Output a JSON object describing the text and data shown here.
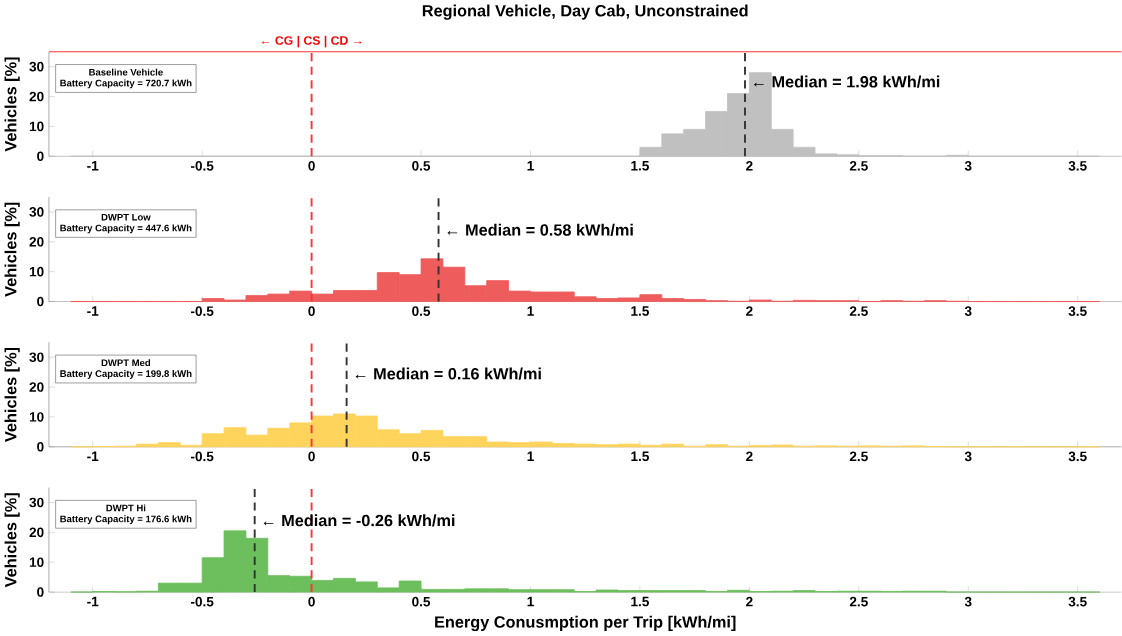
{
  "chart_data": [
    {
      "type": "histogram",
      "title": "Regional Vehicle, Day Cab, Unconstrained",
      "ylabel": "Vehicles [%]",
      "color": "#c0c0c0",
      "bins": [
        -1.1,
        -1.0,
        -0.9,
        -0.8,
        -0.7,
        -0.6,
        -0.5,
        -0.4,
        -0.3,
        -0.2,
        -0.1,
        0,
        0.1,
        0.2,
        0.3,
        0.4,
        0.5,
        0.6,
        0.7,
        0.8,
        0.9,
        1.0,
        1.1,
        1.2,
        1.3,
        1.4,
        1.5,
        1.6,
        1.7,
        1.8,
        1.9,
        2.0,
        2.1,
        2.2,
        2.3,
        2.4,
        2.5,
        2.6,
        2.7,
        2.8,
        2.9,
        3.0,
        3.1,
        3.2,
        3.3,
        3.4,
        3.5,
        3.6
      ],
      "values": [
        0,
        0,
        0,
        0,
        0,
        0,
        0,
        0,
        0,
        0,
        0,
        0,
        0,
        0,
        0,
        0,
        0,
        0,
        0,
        0,
        0,
        0,
        0,
        0,
        0,
        0,
        3,
        7.5,
        9,
        15,
        21,
        28,
        9,
        3,
        0.8,
        0.5,
        0.2,
        0.2,
        0,
        0,
        0.3,
        0,
        0,
        0,
        0,
        0,
        0
      ],
      "xlim": [
        -1.2,
        3.7
      ],
      "ylim": [
        0,
        35
      ],
      "xticks": [
        -1,
        -0.5,
        0,
        0.5,
        1,
        1.5,
        2,
        2.5,
        3,
        3.5
      ],
      "yticks": [
        0,
        10,
        20,
        30
      ],
      "ref_lines": [
        {
          "axis": "x",
          "value": 0,
          "color": "#ff3333",
          "line_style": "dashed"
        },
        {
          "axis": "x",
          "value": 1.98,
          "color": "#333333",
          "line_style": "dashed"
        },
        {
          "axis": "y",
          "value": 35,
          "color": "#ff3333",
          "line_style": "solid"
        }
      ],
      "annotations": [
        "Baseline Vehicle",
        "Battery Capacity = 720.7 kWh",
        {
          "text": "← Median = 1.98 kWh/mi",
          "x": 1.98,
          "y": 25
        },
        "← CG | CS | CD →"
      ],
      "grid": false
    },
    {
      "type": "histogram",
      "ylabel": "Vehicles [%]",
      "color": "#ee5c5c",
      "bins": [
        -1.1,
        -1.0,
        -0.9,
        -0.8,
        -0.7,
        -0.6,
        -0.5,
        -0.4,
        -0.3,
        -0.2,
        -0.1,
        0,
        0.1,
        0.2,
        0.3,
        0.4,
        0.5,
        0.6,
        0.7,
        0.8,
        0.9,
        1.0,
        1.1,
        1.2,
        1.3,
        1.4,
        1.5,
        1.6,
        1.7,
        1.8,
        1.9,
        2.0,
        2.1,
        2.2,
        2.3,
        2.4,
        2.5,
        2.6,
        2.7,
        2.8,
        2.9,
        3.0,
        3.1,
        3.2,
        3.3,
        3.4,
        3.5,
        3.6
      ],
      "values": [
        0,
        0,
        0,
        0,
        0,
        0,
        1,
        0.5,
        2,
        2.5,
        3.5,
        2.5,
        3.7,
        3.7,
        9.7,
        9,
        14.3,
        11.5,
        5.3,
        7,
        3.5,
        3.2,
        3.2,
        1.6,
        1,
        1.2,
        2.3,
        1,
        0.7,
        0.3,
        0.1,
        0.5,
        0.1,
        0.4,
        0.3,
        0.3,
        0,
        0.3,
        0.1,
        0.3,
        0.1,
        0,
        0,
        0,
        0,
        0,
        0
      ],
      "xlim": [
        -1.2,
        3.7
      ],
      "ylim": [
        0,
        35
      ],
      "xticks": [
        -1,
        -0.5,
        0,
        0.5,
        1,
        1.5,
        2,
        2.5,
        3,
        3.5
      ],
      "yticks": [
        0,
        10,
        20,
        30
      ],
      "ref_lines": [
        {
          "axis": "x",
          "value": 0,
          "color": "#ff3333",
          "line_style": "dashed"
        },
        {
          "axis": "x",
          "value": 0.58,
          "color": "#333333",
          "line_style": "dashed"
        }
      ],
      "annotations": [
        "DWPT Low",
        "Battery Capacity = 447.6 kWh",
        {
          "text": "← Median = 0.58 kWh/mi",
          "x": 0.58,
          "y": 24
        }
      ],
      "grid": false
    },
    {
      "type": "histogram",
      "ylabel": "Vehicles [%]",
      "color": "#ffd45c",
      "bins": [
        -1.1,
        -1.0,
        -0.9,
        -0.8,
        -0.7,
        -0.6,
        -0.5,
        -0.4,
        -0.3,
        -0.2,
        -0.1,
        0,
        0.1,
        0.2,
        0.3,
        0.4,
        0.5,
        0.6,
        0.7,
        0.8,
        0.9,
        1.0,
        1.1,
        1.2,
        1.3,
        1.4,
        1.5,
        1.6,
        1.7,
        1.8,
        1.9,
        2.0,
        2.1,
        2.2,
        2.3,
        2.4,
        2.5,
        2.6,
        2.7,
        2.8,
        2.9,
        3.0,
        3.1,
        3.2,
        3.3,
        3.4,
        3.5,
        3.6
      ],
      "values": [
        0,
        0.1,
        0.2,
        0.9,
        1.4,
        0.5,
        4.4,
        6.4,
        3.9,
        6.2,
        8,
        10.3,
        11,
        10.3,
        5.7,
        4.4,
        5.5,
        3.4,
        3.4,
        1.6,
        1.4,
        1.6,
        1.1,
        0.9,
        0.7,
        0.9,
        0.5,
        0.9,
        0.2,
        0.7,
        0.2,
        0.4,
        0.6,
        0.2,
        0.3,
        0.2,
        0.3,
        0.2,
        0.3,
        0.1,
        0,
        0,
        0,
        0,
        0,
        0,
        0
      ],
      "xlim": [
        -1.2,
        3.7
      ],
      "ylim": [
        0,
        35
      ],
      "xticks": [
        -1,
        -0.5,
        0,
        0.5,
        1,
        1.5,
        2,
        2.5,
        3,
        3.5
      ],
      "yticks": [
        0,
        10,
        20,
        30
      ],
      "ref_lines": [
        {
          "axis": "x",
          "value": 0,
          "color": "#ff3333",
          "line_style": "dashed"
        },
        {
          "axis": "x",
          "value": 0.16,
          "color": "#333333",
          "line_style": "dashed"
        }
      ],
      "annotations": [
        "DWPT Med",
        "Battery Capacity = 199.8 kWh",
        {
          "text": "← Median = 0.16 kWh/mi",
          "x": 0.16,
          "y": 24.5
        }
      ],
      "grid": false
    },
    {
      "type": "histogram",
      "ylabel": "Vehicles [%]",
      "xlabel": "Energy Conusmption per Trip [kWh/mi]",
      "color": "#6cbf5c",
      "bins": [
        -1.1,
        -1.0,
        -0.9,
        -0.8,
        -0.7,
        -0.6,
        -0.5,
        -0.4,
        -0.3,
        -0.2,
        -0.1,
        0,
        0.1,
        0.2,
        0.3,
        0.4,
        0.5,
        0.6,
        0.7,
        0.8,
        0.9,
        1.0,
        1.1,
        1.2,
        1.3,
        1.4,
        1.5,
        1.6,
        1.7,
        1.8,
        1.9,
        2.0,
        2.1,
        2.2,
        2.3,
        2.4,
        2.5,
        2.6,
        2.7,
        2.8,
        2.9,
        3.0,
        3.1,
        3.2,
        3.3,
        3.4,
        3.5,
        3.6
      ],
      "values": [
        0,
        0.2,
        0.1,
        0.3,
        3,
        3,
        11.5,
        20.5,
        18,
        5.5,
        5.3,
        3.9,
        4.6,
        3.4,
        1.4,
        3.7,
        0.9,
        0.9,
        1.1,
        1.1,
        0.8,
        0.8,
        0.8,
        0.2,
        0.7,
        0.5,
        0.5,
        0.5,
        0.5,
        0.2,
        0.6,
        0.2,
        0.3,
        0.5,
        0.2,
        0.3,
        0.3,
        0.2,
        0.3,
        0.3,
        0,
        0,
        0,
        0,
        0,
        0,
        0
      ],
      "xlim": [
        -1.2,
        3.7
      ],
      "ylim": [
        0,
        35
      ],
      "xticks": [
        -1,
        -0.5,
        0,
        0.5,
        1,
        1.5,
        2,
        2.5,
        3,
        3.5
      ],
      "yticks": [
        0,
        10,
        20,
        30
      ],
      "ref_lines": [
        {
          "axis": "x",
          "value": 0,
          "color": "#ff3333",
          "line_style": "dashed"
        },
        {
          "axis": "x",
          "value": -0.26,
          "color": "#333333",
          "line_style": "dashed"
        }
      ],
      "annotations": [
        "DWPT Hi",
        "Battery Capacity = 176.6 kWh",
        {
          "text": "← Median = -0.26 kWh/mi",
          "x": -0.26,
          "y": 24
        }
      ],
      "grid": false
    }
  ]
}
